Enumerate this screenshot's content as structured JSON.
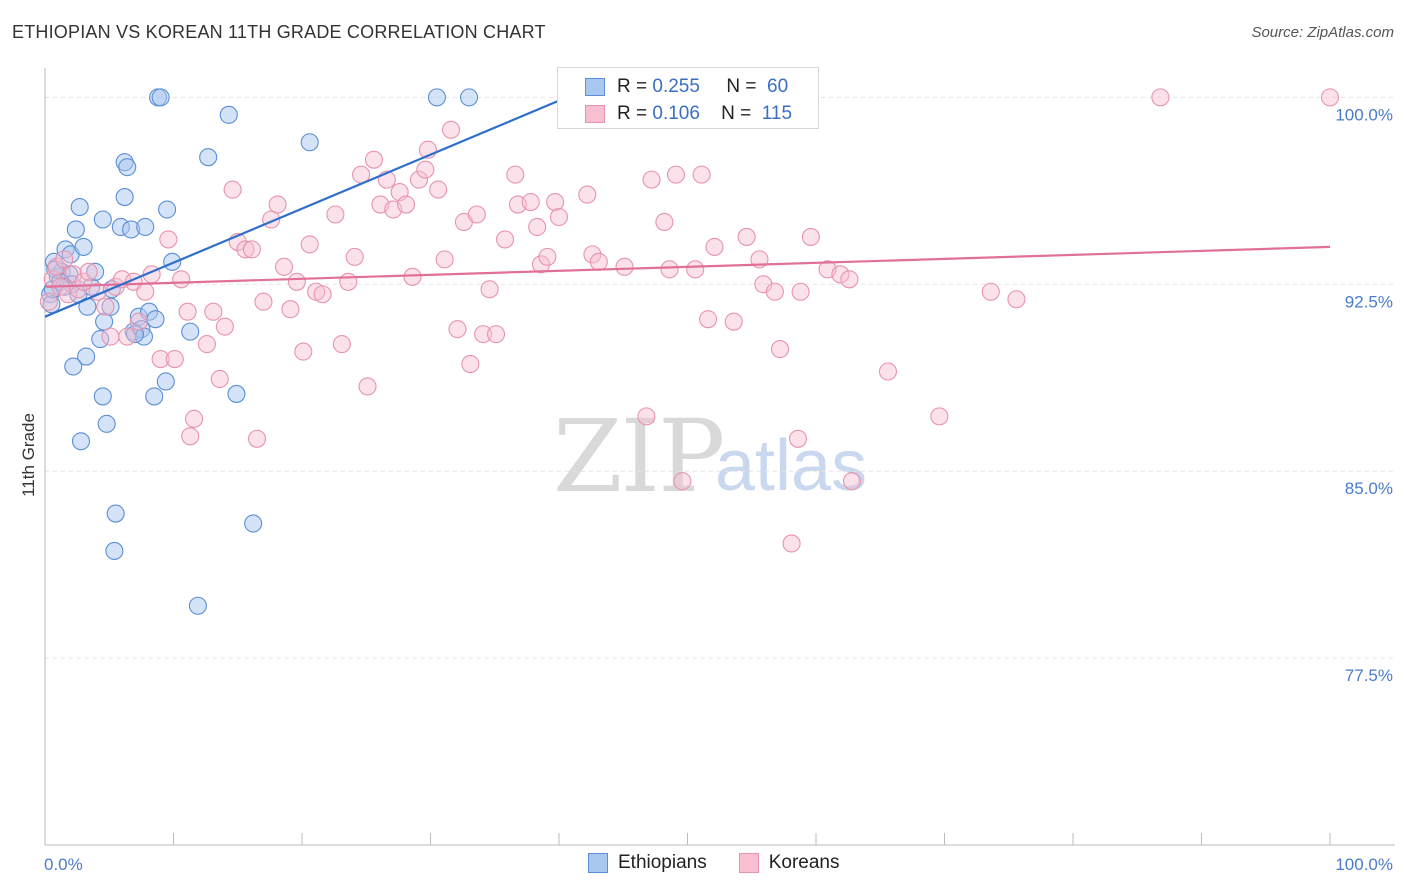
{
  "title": "ETHIOPIAN VS KOREAN 11TH GRADE CORRELATION CHART",
  "source": "Source: ZipAtlas.com",
  "watermark": {
    "zip": "ZIP",
    "atlas": "atlas"
  },
  "colors": {
    "ethiopians_fill": "#a9c8f0",
    "ethiopians_stroke": "#5b8fd6",
    "ethiopians_line": "#2f6fcc",
    "koreans_fill": "#f7bfd0",
    "koreans_stroke": "#e793b0",
    "koreans_line": "#e0709a",
    "grid": "#e3e3e3",
    "axis": "#bbbbbb",
    "tick_label": "#4a7cc9"
  },
  "legend": {
    "rows": [
      {
        "r_label": "R =",
        "r_value": "0.255",
        "n_label": "N =",
        "n_value": "60"
      },
      {
        "r_label": "R =",
        "r_value": "0.106",
        "n_label": "N =",
        "n_value": "115"
      }
    ]
  },
  "bottom_legend": {
    "ethiopians": "Ethiopians",
    "koreans": "Koreans"
  },
  "chart_data": {
    "type": "scatter",
    "title": "ETHIOPIAN VS KOREAN 11TH GRADE CORRELATION CHART",
    "xlabel": "",
    "ylabel": "11th Grade",
    "xlim": [
      0,
      100
    ],
    "ylim": [
      70.0,
      101.5
    ],
    "x_tick_labels": [
      "0.0%",
      "100.0%"
    ],
    "y_ticks": [
      77.5,
      85.0,
      92.5,
      100.0
    ],
    "y_tick_labels": [
      "77.5%",
      "85.0%",
      "92.5%",
      "100.0%"
    ],
    "series": [
      {
        "name": "Ethiopians",
        "r": 0.255,
        "n": 60,
        "trend": {
          "x": [
            0,
            40.6
          ],
          "y": [
            91.2,
            100.0
          ]
        },
        "points": [
          [
            0.4,
            92.1
          ],
          [
            0.7,
            93.4
          ],
          [
            1.0,
            92.8
          ],
          [
            1.3,
            93.0
          ],
          [
            1.6,
            93.9
          ],
          [
            1.9,
            92.9
          ],
          [
            2.1,
            92.5
          ],
          [
            2.4,
            94.7
          ],
          [
            2.6,
            92.1
          ],
          [
            0.5,
            91.7
          ],
          [
            0.6,
            92.3
          ],
          [
            0.8,
            93.1
          ],
          [
            1.2,
            92.6
          ],
          [
            1.5,
            92.4
          ],
          [
            2.0,
            93.7
          ],
          [
            3.0,
            94.0
          ],
          [
            3.3,
            91.6
          ],
          [
            3.6,
            92.4
          ],
          [
            3.9,
            93.0
          ],
          [
            4.5,
            95.1
          ],
          [
            4.6,
            91.0
          ],
          [
            5.1,
            91.6
          ],
          [
            5.2,
            92.3
          ],
          [
            5.9,
            94.8
          ],
          [
            6.2,
            97.4
          ],
          [
            6.4,
            97.2
          ],
          [
            6.7,
            94.7
          ],
          [
            6.9,
            90.6
          ],
          [
            7.3,
            91.2
          ],
          [
            7.5,
            90.7
          ],
          [
            7.7,
            90.4
          ],
          [
            7.8,
            94.8
          ],
          [
            8.1,
            91.4
          ],
          [
            8.5,
            88.0
          ],
          [
            8.6,
            91.1
          ],
          [
            8.8,
            100.0
          ],
          [
            9.0,
            100.0
          ],
          [
            9.4,
            88.6
          ],
          [
            9.5,
            95.5
          ],
          [
            9.9,
            93.4
          ],
          [
            11.3,
            90.6
          ],
          [
            11.9,
            79.6
          ],
          [
            12.7,
            97.6
          ],
          [
            14.3,
            99.3
          ],
          [
            14.9,
            88.1
          ],
          [
            16.2,
            82.9
          ],
          [
            20.6,
            98.2
          ],
          [
            30.5,
            100.0
          ],
          [
            33.0,
            100.0
          ],
          [
            6.2,
            96.0
          ],
          [
            4.3,
            90.3
          ],
          [
            2.8,
            86.2
          ],
          [
            4.8,
            86.9
          ],
          [
            5.5,
            83.3
          ],
          [
            5.4,
            81.8
          ],
          [
            2.7,
            95.6
          ],
          [
            3.2,
            89.6
          ],
          [
            2.2,
            89.2
          ],
          [
            4.5,
            88.0
          ],
          [
            7.0,
            90.5
          ]
        ]
      },
      {
        "name": "Koreans",
        "r": 0.106,
        "n": 115,
        "trend": {
          "x": [
            0,
            100
          ],
          "y": [
            92.4,
            94.0
          ]
        },
        "points": [
          [
            0.3,
            91.8
          ],
          [
            0.6,
            92.7
          ],
          [
            0.9,
            93.2
          ],
          [
            1.2,
            92.4
          ],
          [
            1.5,
            93.5
          ],
          [
            1.8,
            92.1
          ],
          [
            2.2,
            92.9
          ],
          [
            2.6,
            92.3
          ],
          [
            3.0,
            92.6
          ],
          [
            3.4,
            93.0
          ],
          [
            4.1,
            92.2
          ],
          [
            4.7,
            91.6
          ],
          [
            5.1,
            90.4
          ],
          [
            5.5,
            92.4
          ],
          [
            6.0,
            92.7
          ],
          [
            6.4,
            90.4
          ],
          [
            6.9,
            92.6
          ],
          [
            7.3,
            91.0
          ],
          [
            7.8,
            92.2
          ],
          [
            8.3,
            92.9
          ],
          [
            9.0,
            89.5
          ],
          [
            9.6,
            94.3
          ],
          [
            10.1,
            89.5
          ],
          [
            10.6,
            92.7
          ],
          [
            11.1,
            91.4
          ],
          [
            11.6,
            87.1
          ],
          [
            11.3,
            86.4
          ],
          [
            12.6,
            90.1
          ],
          [
            13.1,
            91.4
          ],
          [
            13.6,
            88.7
          ],
          [
            14.0,
            90.8
          ],
          [
            14.6,
            96.3
          ],
          [
            15.0,
            94.2
          ],
          [
            15.6,
            93.9
          ],
          [
            16.1,
            93.9
          ],
          [
            16.5,
            86.3
          ],
          [
            17.0,
            91.8
          ],
          [
            17.6,
            95.1
          ],
          [
            18.1,
            95.7
          ],
          [
            18.6,
            93.2
          ],
          [
            19.1,
            91.5
          ],
          [
            19.6,
            92.6
          ],
          [
            20.1,
            89.8
          ],
          [
            20.6,
            94.1
          ],
          [
            21.1,
            92.2
          ],
          [
            21.6,
            92.1
          ],
          [
            22.6,
            95.3
          ],
          [
            23.1,
            90.1
          ],
          [
            23.6,
            92.6
          ],
          [
            24.1,
            93.6
          ],
          [
            24.6,
            96.9
          ],
          [
            25.1,
            88.4
          ],
          [
            25.6,
            97.5
          ],
          [
            26.1,
            95.7
          ],
          [
            26.6,
            96.7
          ],
          [
            27.1,
            95.5
          ],
          [
            27.6,
            96.2
          ],
          [
            28.1,
            95.7
          ],
          [
            28.6,
            92.8
          ],
          [
            29.1,
            96.7
          ],
          [
            29.6,
            97.1
          ],
          [
            29.8,
            97.9
          ],
          [
            30.6,
            96.3
          ],
          [
            31.1,
            93.5
          ],
          [
            31.6,
            98.7
          ],
          [
            32.1,
            90.7
          ],
          [
            32.6,
            95.0
          ],
          [
            33.1,
            89.3
          ],
          [
            33.6,
            95.3
          ],
          [
            34.1,
            90.5
          ],
          [
            34.6,
            92.3
          ],
          [
            35.1,
            90.5
          ],
          [
            35.8,
            94.3
          ],
          [
            36.8,
            95.7
          ],
          [
            36.6,
            96.9
          ],
          [
            37.8,
            95.8
          ],
          [
            38.3,
            94.8
          ],
          [
            38.6,
            93.3
          ],
          [
            39.1,
            93.6
          ],
          [
            39.7,
            95.8
          ],
          [
            40.0,
            95.2
          ],
          [
            40.6,
            100.0
          ],
          [
            42.2,
            96.1
          ],
          [
            42.6,
            93.7
          ],
          [
            43.1,
            93.4
          ],
          [
            45.1,
            93.2
          ],
          [
            46.8,
            87.2
          ],
          [
            47.2,
            96.7
          ],
          [
            48.2,
            95.0
          ],
          [
            48.6,
            93.1
          ],
          [
            49.1,
            96.9
          ],
          [
            49.6,
            84.6
          ],
          [
            50.6,
            93.1
          ],
          [
            51.1,
            96.9
          ],
          [
            51.6,
            91.1
          ],
          [
            52.1,
            94.0
          ],
          [
            53.6,
            91.0
          ],
          [
            54.6,
            94.4
          ],
          [
            55.6,
            93.5
          ],
          [
            55.9,
            92.5
          ],
          [
            56.8,
            92.2
          ],
          [
            58.1,
            82.1
          ],
          [
            57.2,
            89.9
          ],
          [
            58.6,
            86.3
          ],
          [
            58.8,
            92.2
          ],
          [
            59.6,
            94.4
          ],
          [
            60.9,
            93.1
          ],
          [
            61.9,
            92.9
          ],
          [
            62.6,
            92.7
          ],
          [
            62.8,
            84.6
          ],
          [
            65.6,
            89.0
          ],
          [
            69.6,
            87.2
          ],
          [
            73.6,
            92.2
          ],
          [
            75.6,
            91.9
          ],
          [
            86.8,
            100.0
          ],
          [
            100.0,
            100.0
          ]
        ]
      }
    ]
  }
}
